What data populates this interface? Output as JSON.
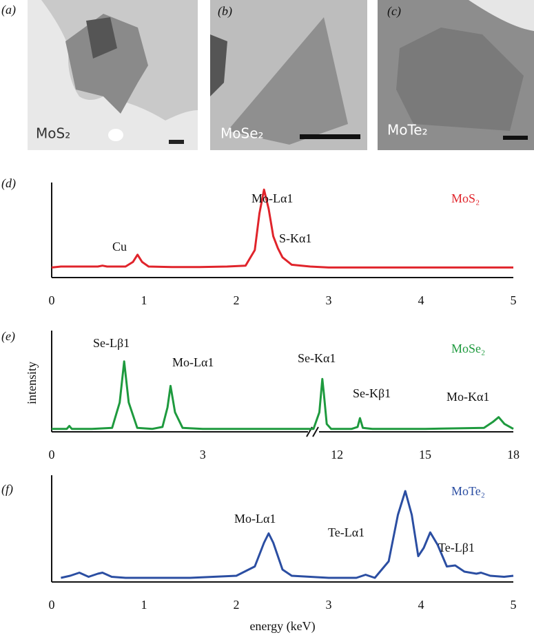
{
  "panels": [
    {
      "label": "(a)",
      "caption": "MoS₂"
    },
    {
      "label": "(b)",
      "caption": "MoSe₂"
    },
    {
      "label": "(c)",
      "caption": "MoTe₂"
    }
  ],
  "chart_data": [
    {
      "type": "line",
      "label": "(d)",
      "x": [
        0,
        0.1,
        0.3,
        0.5,
        0.55,
        0.6,
        0.8,
        0.88,
        0.93,
        0.98,
        1.05,
        1.3,
        1.6,
        1.9,
        2.1,
        2.2,
        2.25,
        2.3,
        2.35,
        2.4,
        2.45,
        2.5,
        2.6,
        2.8,
        3,
        3.5,
        4,
        4.5,
        5
      ],
      "series": [
        {
          "name": "MoS₂",
          "color": "#e0242b",
          "values": [
            11,
            12,
            12,
            12,
            13,
            12,
            12,
            17,
            25,
            17,
            12,
            11.5,
            11.5,
            12,
            13,
            30,
            70,
            96,
            75,
            45,
            32,
            22,
            14,
            12,
            11,
            11,
            11,
            11,
            11
          ]
        }
      ],
      "xlim": [
        0,
        5
      ],
      "xticks": [
        0,
        1,
        2,
        3,
        4,
        5
      ],
      "ylim": [
        0,
        100
      ],
      "annotations": [
        "Cu",
        "Mo-Lα1",
        "S-Kα1"
      ]
    },
    {
      "type": "line",
      "label": "(e)",
      "ylabel": "intensity",
      "x": [
        0,
        0.3,
        0.35,
        0.4,
        0.8,
        1.2,
        1.35,
        1.44,
        1.53,
        1.7,
        2.0,
        2.2,
        2.3,
        2.36,
        2.45,
        2.6,
        3.0,
        4.0,
        5.2,
        11.2,
        11.4,
        11.5,
        11.55,
        11.65,
        11.8,
        12.5,
        12.7,
        12.78,
        12.88,
        13.2,
        15,
        17,
        17.3,
        17.5,
        17.7,
        18
      ],
      "series": [
        {
          "name": "MoSe₂",
          "color": "#1e9a3e",
          "values": [
            3,
            3,
            6,
            3,
            3,
            4,
            30,
            72,
            30,
            4,
            3,
            5,
            25,
            47,
            20,
            4,
            3,
            3,
            3,
            3,
            20,
            54,
            40,
            8,
            3,
            3,
            5,
            14,
            4,
            3,
            3,
            4,
            10,
            15,
            8,
            3
          ]
        }
      ],
      "xlim": [
        0,
        18
      ],
      "axis_break": [
        5.2,
        11.2
      ],
      "xticks": [
        0,
        3,
        12,
        15,
        18
      ],
      "ylim": [
        0,
        100
      ],
      "annotations": [
        "Se-Lβ1",
        "Mo-Lα1",
        "Se-Kα1",
        "Se-Kβ1",
        "Mo-Kα1"
      ]
    },
    {
      "type": "line",
      "label": "(f)",
      "xlabel": "energy (keV)",
      "x": [
        0.1,
        0.2,
        0.3,
        0.4,
        0.5,
        0.55,
        0.65,
        0.8,
        1.5,
        2.0,
        2.2,
        2.3,
        2.35,
        2.4,
        2.5,
        2.6,
        3.0,
        3.3,
        3.4,
        3.5,
        3.65,
        3.75,
        3.83,
        3.9,
        3.97,
        4.03,
        4.1,
        4.18,
        4.28,
        4.37,
        4.47,
        4.6,
        4.65,
        4.75,
        4.9,
        5
      ],
      "series": [
        {
          "name": "MoTe₂",
          "color": "#2b4ea2",
          "values": [
            4,
            6,
            9,
            5,
            8,
            9,
            5,
            4,
            4,
            6,
            15,
            38,
            47,
            38,
            12,
            6,
            4,
            4,
            7,
            4,
            20,
            65,
            88,
            65,
            25,
            33,
            48,
            36,
            15,
            16,
            10,
            8,
            9,
            6,
            5,
            6
          ]
        }
      ],
      "xlim": [
        0,
        5
      ],
      "xticks": [
        0,
        1,
        2,
        3,
        4,
        5
      ],
      "ylim": [
        0,
        100
      ],
      "annotations": [
        "Mo-Lα1",
        "Te-Lα1",
        "Te-Lβ1"
      ]
    }
  ]
}
